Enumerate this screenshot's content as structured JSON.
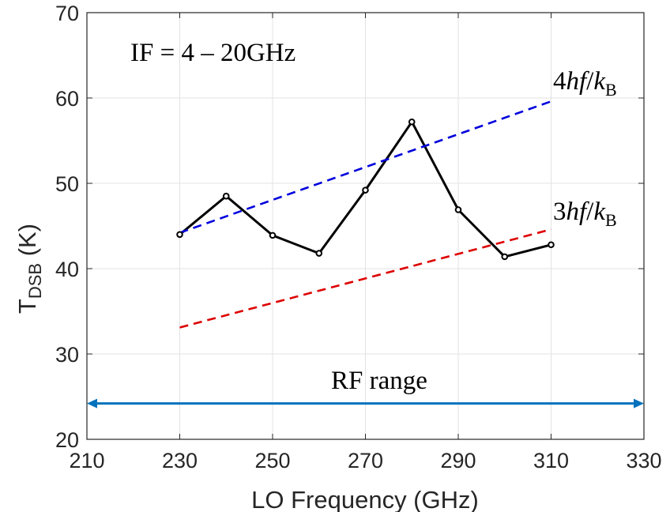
{
  "chart_data": {
    "type": "line",
    "xlabel": "LO Frequency (GHz)",
    "ylabel": {
      "main": "T",
      "sub": "DSB",
      "unit": " (K)"
    },
    "xlim": [
      210,
      330
    ],
    "ylim": [
      20,
      70
    ],
    "xticks": [
      210,
      230,
      250,
      270,
      290,
      310,
      330
    ],
    "yticks": [
      20,
      30,
      40,
      50,
      60,
      70
    ],
    "grid": true,
    "series": [
      {
        "style": "solid-markers",
        "color": "#000000",
        "x": [
          230,
          240,
          250,
          260,
          270,
          280,
          290,
          300,
          310
        ],
        "y": [
          44.0,
          48.5,
          43.9,
          41.8,
          49.2,
          57.2,
          46.9,
          41.4,
          42.8
        ]
      },
      {
        "name": "4hf/kB",
        "style": "dashed",
        "color": "#0000dd",
        "x": [
          230,
          310
        ],
        "y": [
          44.2,
          59.6
        ]
      },
      {
        "name": "3hf/kB",
        "style": "dashed",
        "color": "#dd0000",
        "x": [
          230,
          310
        ],
        "y": [
          33.1,
          44.6
        ]
      }
    ],
    "annotations": {
      "if_text": "IF = 4 – 20GHz",
      "rf_range": {
        "text": "RF range",
        "x": [
          210,
          330
        ],
        "y": 24.2,
        "color": "#0072bd"
      },
      "label_4": {
        "coef": "4",
        "hf": "hf",
        "slash": "/",
        "k": "k",
        "sub": "B"
      },
      "label_3": {
        "coef": "3",
        "hf": "hf",
        "slash": "/",
        "k": "k",
        "sub": "B"
      }
    }
  }
}
